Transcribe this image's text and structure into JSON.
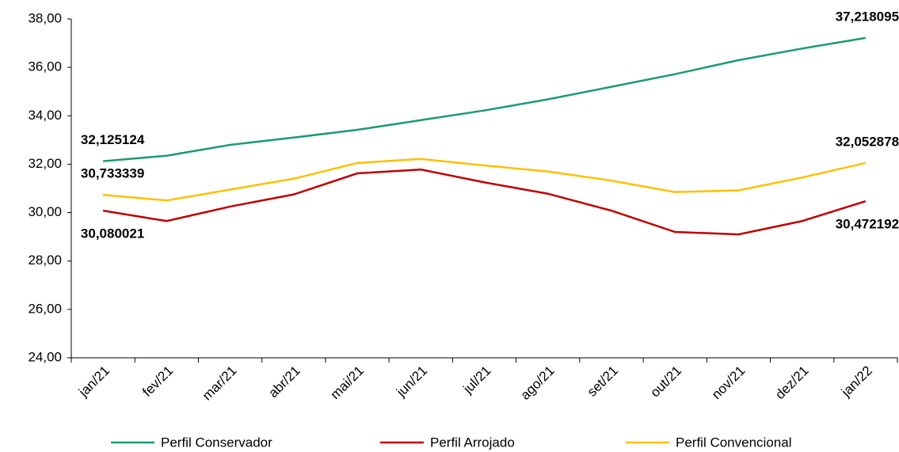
{
  "chart_data": {
    "type": "line",
    "categories": [
      "jan/21",
      "fev/21",
      "mar/21",
      "abr/21",
      "mai/21",
      "jun/21",
      "jul/21",
      "ago/21",
      "set/21",
      "out/21",
      "nov/21",
      "dez/21",
      "jan/22"
    ],
    "series": [
      {
        "name": "Perfil Conservador",
        "color": "#1a9a77",
        "values": [
          32.125124,
          32.35,
          32.8,
          33.1,
          33.42,
          33.82,
          34.22,
          34.68,
          35.2,
          35.72,
          36.3,
          36.78,
          37.218095
        ],
        "value_labels": [
          "32,125124",
          null,
          null,
          null,
          null,
          null,
          null,
          null,
          null,
          null,
          null,
          null,
          "37,218095"
        ]
      },
      {
        "name": "Perfil Arrojado",
        "color": "#c00000",
        "values": [
          30.080021,
          29.65,
          30.25,
          30.75,
          31.62,
          31.78,
          31.25,
          30.78,
          30.08,
          29.2,
          29.1,
          29.65,
          30.472192
        ],
        "value_labels": [
          "30,080021",
          null,
          null,
          null,
          null,
          null,
          null,
          null,
          null,
          null,
          null,
          null,
          "30,472192"
        ]
      },
      {
        "name": "Perfil Convencional",
        "color": "#ffc000",
        "values": [
          30.733339,
          30.5,
          30.95,
          31.4,
          32.05,
          32.22,
          31.95,
          31.7,
          31.32,
          30.85,
          30.92,
          31.45,
          32.052878
        ],
        "value_labels": [
          "30,733339",
          null,
          null,
          null,
          null,
          null,
          null,
          null,
          null,
          null,
          null,
          null,
          "32,052878"
        ]
      }
    ],
    "ylim": [
      24,
      38
    ],
    "yticks": [
      {
        "value": 24,
        "label": "24,00"
      },
      {
        "value": 26,
        "label": "26,00"
      },
      {
        "value": 28,
        "label": "28,00"
      },
      {
        "value": 30,
        "label": "30,00"
      },
      {
        "value": 32,
        "label": "32,00"
      },
      {
        "value": 34,
        "label": "34,00"
      },
      {
        "value": 36,
        "label": "36,00"
      },
      {
        "value": 38,
        "label": "38,00"
      }
    ],
    "grid": false,
    "legend": "bottom"
  }
}
